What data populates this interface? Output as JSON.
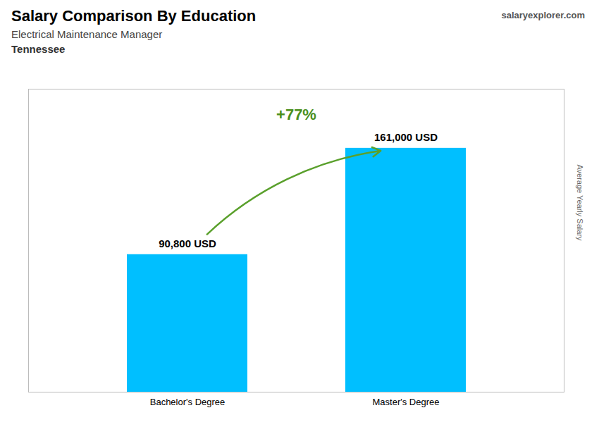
{
  "chart_data": {
    "type": "bar",
    "title": "Salary Comparison By Education",
    "subtitle": "Electrical Maintenance Manager",
    "annotations": [
      "Tennessee",
      "salaryexplorer.com",
      "+77%"
    ],
    "ylabel": "Average Yearly Salary",
    "categories": [
      "Bachelor's Degree",
      "Master's Degree"
    ],
    "values": [
      90800,
      161000
    ],
    "value_labels": [
      "90,800 USD",
      "161,000 USD"
    ],
    "color": "#00BFFF",
    "ylim": [
      0,
      200000
    ],
    "grid": false,
    "data_labels": true,
    "tick_labels": "x"
  }
}
